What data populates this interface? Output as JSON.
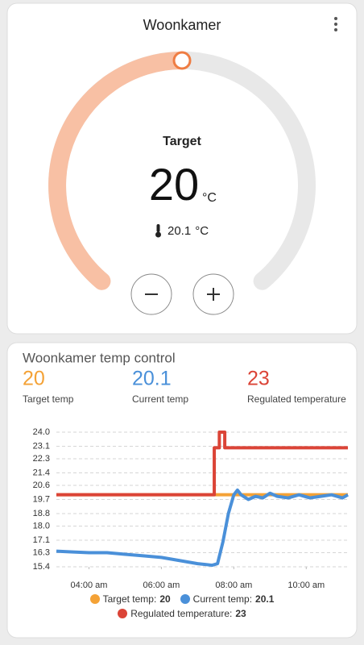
{
  "thermostat": {
    "title": "Woonkamer",
    "label": "Target",
    "target": 20,
    "unit": "°C",
    "current_temperature": 20.1
  },
  "chart_data": {
    "type": "line",
    "title": "Woonkamer temp control",
    "xlim": [
      3.1,
      11.15
    ],
    "ylim": [
      15.4,
      24.0
    ],
    "grid": true,
    "yticks": [
      {
        "value": 24,
        "label": "24.0"
      },
      23.1,
      22.3,
      21.4,
      20.6,
      19.7,
      18.8,
      {
        "value": 18,
        "label": "18.0"
      },
      17.1,
      16.3,
      15.4
    ],
    "xticks": [
      {
        "value": 4,
        "label": "04:00 am"
      },
      {
        "value": 6,
        "label": "06:00 am"
      },
      {
        "value": 8,
        "label": "08:00 am"
      },
      {
        "value": 10,
        "label": "10:00 am"
      }
    ],
    "series": [
      {
        "name": "Target temp",
        "color": "#f4a236",
        "state": 20,
        "x": [
          3.1,
          11.15
        ],
        "values": [
          20,
          20
        ]
      },
      {
        "name": "Current temp",
        "color": "#4a90d9",
        "state": 20.1,
        "x": [
          3.1,
          3.5,
          4.0,
          4.5,
          5.0,
          5.5,
          6.0,
          6.5,
          7.0,
          7.4,
          7.55,
          7.7,
          7.85,
          8.0,
          8.1,
          8.2,
          8.4,
          8.6,
          8.8,
          9.0,
          9.2,
          9.5,
          9.8,
          10.1,
          10.4,
          10.7,
          11.0,
          11.15
        ],
        "values": [
          16.4,
          16.35,
          16.3,
          16.3,
          16.2,
          16.1,
          16.0,
          15.8,
          15.6,
          15.5,
          15.6,
          17.0,
          18.8,
          20.0,
          20.3,
          20.0,
          19.7,
          19.9,
          19.8,
          20.1,
          19.9,
          19.8,
          20.0,
          19.8,
          19.9,
          20.0,
          19.8,
          20.0
        ]
      },
      {
        "name": "Regulated temperature",
        "color": "#db4437",
        "state": 23,
        "x": [
          3.1,
          7.46,
          7.46,
          7.6,
          7.6,
          7.75,
          7.75,
          11.15
        ],
        "values": [
          20,
          20,
          23,
          23,
          24,
          24,
          23,
          23
        ]
      }
    ]
  }
}
